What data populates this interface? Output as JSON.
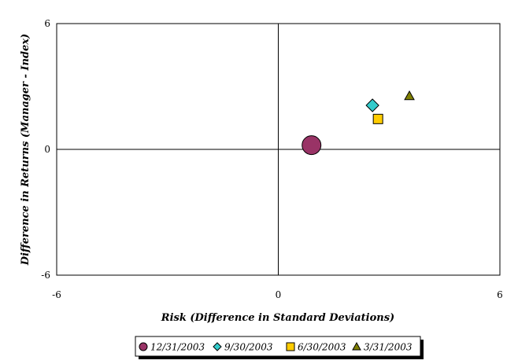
{
  "chart_data": {
    "type": "scatter",
    "title": "",
    "xlabel": "Risk (Difference in Standard Deviations)",
    "ylabel": "Difference in Returns (Manager - Index)",
    "xlim": [
      -6,
      6
    ],
    "ylim": [
      -6,
      6
    ],
    "x_ticks": [
      "-6",
      "0",
      "6"
    ],
    "y_ticks": [
      "6",
      "0",
      "-6"
    ],
    "grid": false,
    "quadrant_lines": true,
    "legend_position": "bottom",
    "series": [
      {
        "name": "12/31/2003",
        "marker": "circle",
        "color": "#993366",
        "x": [
          0.9
        ],
        "y": [
          0.2
        ]
      },
      {
        "name": "9/30/2003",
        "marker": "diamond",
        "color": "#33CCCC",
        "x": [
          2.55
        ],
        "y": [
          2.1
        ]
      },
      {
        "name": "6/30/2003",
        "marker": "square",
        "color": "#FFCC00",
        "x": [
          2.7
        ],
        "y": [
          1.45
        ]
      },
      {
        "name": "3/31/2003",
        "marker": "triangle",
        "color": "#808000",
        "x": [
          3.55
        ],
        "y": [
          2.55
        ]
      }
    ]
  }
}
